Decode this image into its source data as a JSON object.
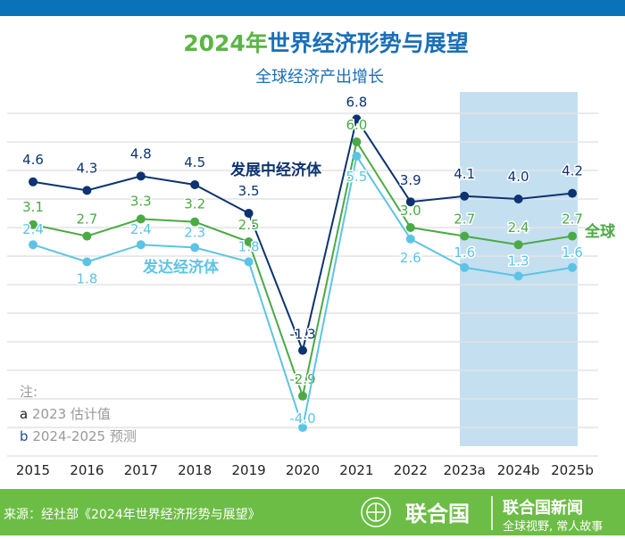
{
  "title_year": "2024年",
  "title_rest": "世界经济形势与展望",
  "subtitle": "全球经济产出增长",
  "notes": {
    "heading": "注:",
    "a_key": "a",
    "a_text": "2023 估计值",
    "b_key": "b",
    "b_text": "2024-2025 预测"
  },
  "footer": {
    "source": "来源：经社部《2024年世界经济形势与展望》",
    "brand": "联合国",
    "news": "联合国新闻",
    "slogan": "全球视野, 常人故事"
  },
  "colors": {
    "top_bar": "#0a72b8",
    "title_green": "#5ab645",
    "title_blue": "#1a6fb8",
    "developing": "#0d3370",
    "world": "#4aaa44",
    "developed": "#5bc4e6",
    "shade": "#c4dff0",
    "footer": "#6cbd45"
  },
  "chart_data": {
    "type": "line",
    "categories": [
      "2015",
      "2016",
      "2017",
      "2018",
      "2019",
      "2020",
      "2021",
      "2022",
      "2023a",
      "2024b",
      "2025b"
    ],
    "ylim": [
      -5,
      7
    ],
    "grid": true,
    "shaded_categories": [
      "2023a",
      "2024b",
      "2025b"
    ],
    "series": [
      {
        "name": "发展中经济体",
        "color": "#0d3370",
        "values": [
          4.6,
          4.3,
          4.8,
          4.5,
          3.5,
          -1.3,
          6.8,
          3.9,
          4.1,
          4.0,
          4.2
        ]
      },
      {
        "name": "全球",
        "color": "#4aaa44",
        "values": [
          3.1,
          2.7,
          3.3,
          3.2,
          2.5,
          -2.9,
          6.0,
          3.0,
          2.7,
          2.4,
          2.7
        ]
      },
      {
        "name": "发达经济体",
        "color": "#5bc4e6",
        "values": [
          2.4,
          1.8,
          2.4,
          2.3,
          1.8,
          -4.0,
          5.5,
          2.6,
          1.6,
          1.3,
          1.6
        ]
      }
    ]
  }
}
